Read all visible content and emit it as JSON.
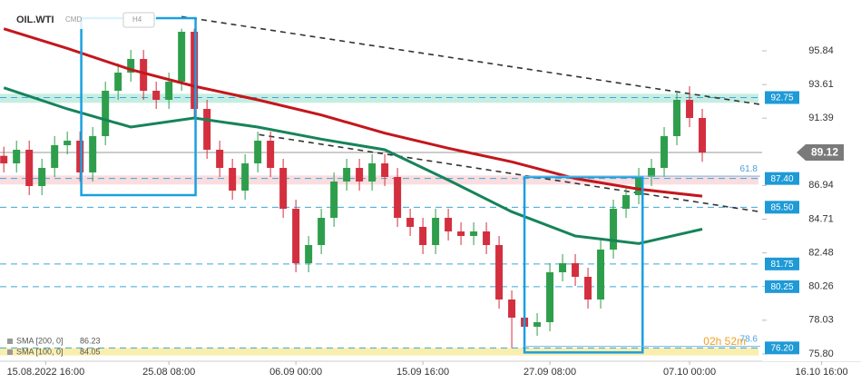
{
  "header": {
    "symbol": "OIL.WTI",
    "market": "CMD",
    "interval": "H4",
    "countdown": "02h 52m"
  },
  "chart_data": {
    "type": "candlestick",
    "x": [
      0,
      1,
      2,
      3,
      4,
      5,
      6,
      7,
      8,
      9,
      10,
      11,
      12,
      13,
      14,
      15,
      16,
      17,
      18,
      19,
      20,
      21,
      22,
      23,
      24,
      25,
      26,
      27,
      28,
      29,
      30,
      31,
      32,
      33,
      34,
      35,
      36,
      37,
      38,
      39,
      40,
      41,
      42,
      43,
      44,
      45,
      46,
      47,
      48,
      49,
      50,
      51,
      52,
      53,
      54,
      55
    ],
    "open": [
      88.9,
      88.4,
      89.3,
      86.9,
      88.1,
      89.6,
      89.9,
      87.8,
      90.2,
      93.2,
      94.4,
      95.3,
      93.2,
      92.6,
      93.8,
      97.1,
      92.0,
      89.3,
      88.1,
      86.6,
      88.4,
      89.9,
      88.1,
      85.4,
      81.8,
      83.0,
      84.8,
      87.2,
      88.1,
      87.2,
      88.4,
      87.5,
      84.8,
      84.2,
      83.0,
      84.8,
      83.9,
      83.6,
      83.9,
      83.0,
      79.4,
      78.2,
      77.6,
      77.9,
      81.2,
      81.8,
      80.9,
      79.4,
      82.7,
      85.4,
      86.3,
      87.5,
      88.1,
      90.2,
      92.6,
      91.4
    ],
    "high": [
      89.5,
      89.9,
      89.9,
      88.7,
      90.2,
      90.5,
      90.5,
      90.8,
      93.8,
      95.0,
      95.9,
      95.9,
      93.8,
      94.4,
      97.3,
      97.3,
      92.6,
      89.9,
      88.7,
      89.0,
      90.5,
      90.5,
      88.7,
      86.0,
      83.6,
      85.4,
      87.8,
      88.7,
      88.7,
      89.0,
      89.0,
      88.1,
      85.4,
      84.8,
      85.4,
      85.4,
      84.5,
      84.5,
      84.5,
      83.6,
      80.0,
      78.8,
      78.5,
      81.8,
      82.4,
      82.4,
      81.5,
      83.3,
      86.0,
      86.9,
      88.1,
      88.7,
      90.8,
      93.2,
      93.5,
      92.0
    ],
    "low": [
      87.8,
      87.8,
      86.3,
      86.3,
      87.5,
      89.0,
      87.2,
      87.2,
      89.6,
      92.6,
      93.8,
      92.6,
      92.0,
      92.0,
      93.2,
      91.4,
      88.7,
      87.5,
      86.0,
      86.0,
      87.8,
      87.5,
      84.8,
      81.2,
      81.2,
      82.4,
      84.2,
      86.6,
      86.6,
      86.6,
      86.9,
      84.2,
      83.6,
      82.4,
      82.4,
      83.3,
      83.0,
      83.0,
      82.4,
      78.8,
      76.2,
      77.0,
      77.0,
      77.3,
      80.6,
      80.3,
      78.8,
      78.8,
      82.1,
      84.8,
      85.7,
      86.9,
      87.5,
      89.6,
      90.8,
      88.5
    ],
    "close": [
      88.4,
      89.3,
      86.9,
      88.1,
      89.6,
      89.9,
      87.8,
      90.2,
      93.2,
      94.4,
      95.3,
      93.2,
      92.6,
      93.8,
      97.1,
      92.0,
      89.3,
      88.1,
      86.6,
      88.4,
      89.9,
      88.1,
      85.4,
      81.8,
      83.0,
      84.8,
      87.2,
      88.1,
      87.2,
      88.4,
      87.5,
      84.8,
      84.2,
      83.0,
      84.8,
      83.9,
      83.6,
      83.9,
      83.0,
      79.4,
      78.2,
      77.6,
      77.9,
      81.2,
      81.8,
      80.9,
      79.4,
      82.7,
      85.4,
      86.3,
      87.5,
      88.1,
      90.2,
      92.6,
      91.4,
      89.12
    ],
    "up_color": "#2f9e4c",
    "down_color": "#d32f3f",
    "series": [
      {
        "name": "SMA [200, 0]",
        "color": "#c4161c",
        "x": [
          0,
          5,
          10,
          15,
          20,
          25,
          30,
          35,
          40,
          45,
          50,
          55
        ],
        "values": [
          97.3,
          96.0,
          94.6,
          93.5,
          92.6,
          91.6,
          90.4,
          89.4,
          88.5,
          87.4,
          86.7,
          86.23
        ]
      },
      {
        "name": "SMA [100, 0]",
        "color": "#17835a",
        "x": [
          0,
          5,
          10,
          15,
          20,
          25,
          30,
          35,
          40,
          45,
          50,
          55
        ],
        "values": [
          93.4,
          92.0,
          90.8,
          91.4,
          90.8,
          90.0,
          89.3,
          87.3,
          85.2,
          83.6,
          83.1,
          84.05
        ]
      }
    ],
    "xlim": [
      -0.3,
      66.5
    ],
    "xticks": [
      {
        "value": 3.3,
        "label": "15.08.2022 16:00"
      },
      {
        "value": 13,
        "label": "25.08 08:00"
      },
      {
        "value": 23,
        "label": "06.09 00:00"
      },
      {
        "value": 33,
        "label": "15.09 16:00"
      },
      {
        "value": 43,
        "label": "27.09 08:00"
      },
      {
        "value": 54,
        "label": "07.10 00:00"
      },
      {
        "value": 64.4,
        "label": "16.10 16:00"
      }
    ],
    "ylim": [
      75.32,
      99.2
    ],
    "yticks": [
      {
        "value": 75.8,
        "label": "75.80"
      },
      78.03,
      80.26,
      82.48,
      84.71,
      86.94,
      91.39,
      93.61,
      95.84
    ],
    "levels": [
      {
        "value": 92.75,
        "label": "92.75",
        "zone": [
          92.4,
          93.0
        ],
        "zone_color": "#9fe3cf"
      },
      {
        "value": 87.4,
        "label": "87.40",
        "zone": [
          87.0,
          87.6
        ],
        "zone_color": "#f6c6c9"
      },
      {
        "value": 85.5,
        "label": "85.50"
      },
      {
        "value": 81.75,
        "label": "81.75"
      },
      {
        "value": 80.25,
        "label": "80.25"
      },
      {
        "value": 76.2,
        "label": "76.20",
        "zone": [
          75.7,
          76.2
        ],
        "zone_color": "#f7e27a"
      }
    ],
    "current_price": 89.12,
    "fib": [
      {
        "label": "61.8",
        "price": 87.55
      },
      {
        "label": "78.6",
        "price": 76.3
      }
    ],
    "trendlines": [
      {
        "x": [
          14,
          61.1
        ],
        "y": [
          98.1,
          92.1
        ]
      },
      {
        "x": [
          20.1,
          61.1
        ],
        "y": [
          90.3,
          85.0
        ]
      }
    ],
    "boxes": [
      {
        "x": [
          6.1,
          15.1
        ],
        "y": [
          86.3,
          98.0
        ]
      },
      {
        "x": [
          41,
          50.3
        ],
        "y": [
          75.9,
          87.5
        ]
      }
    ]
  }
}
